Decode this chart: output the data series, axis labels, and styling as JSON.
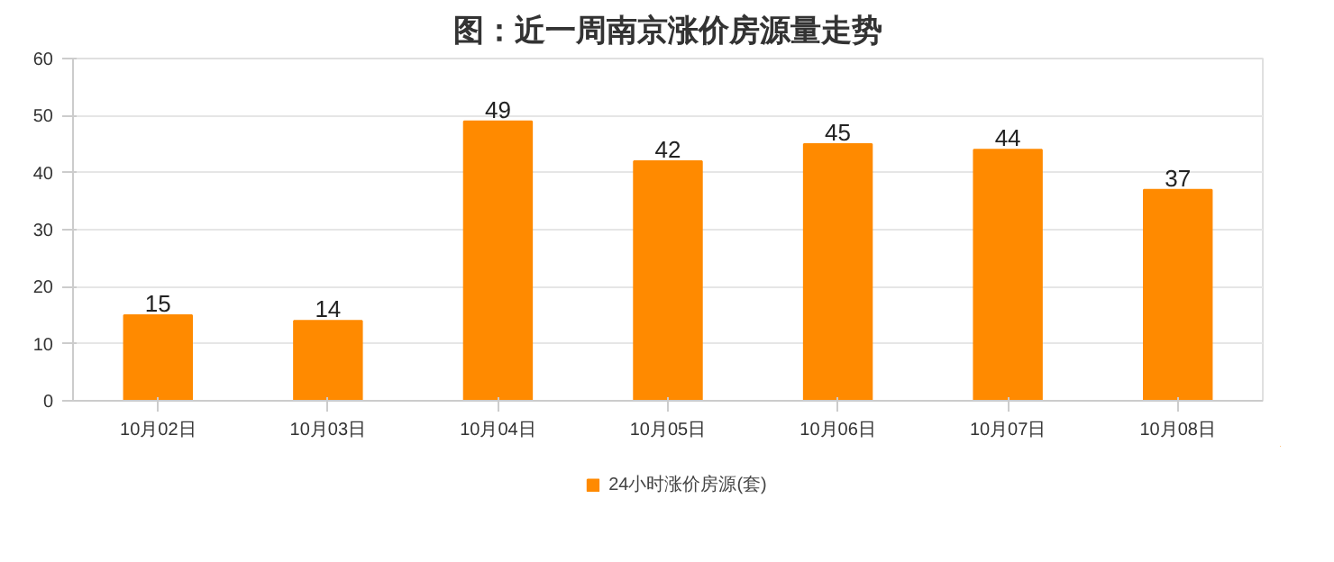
{
  "chart_data": {
    "type": "bar",
    "title": "图：近一周南京涨价房源量走势",
    "categories": [
      "10月02日",
      "10月03日",
      "10月04日",
      "10月05日",
      "10月06日",
      "10月07日",
      "10月08日"
    ],
    "series": [
      {
        "name": "24小时涨价房源(套)",
        "color": "#ff8a00",
        "values": [
          15,
          14,
          49,
          42,
          45,
          44,
          37
        ]
      }
    ],
    "ylim": [
      0,
      60
    ],
    "yticks": [
      0,
      10,
      20,
      30,
      40,
      50,
      60
    ],
    "grid": "y",
    "legend": "bottom",
    "data_labels": true
  }
}
